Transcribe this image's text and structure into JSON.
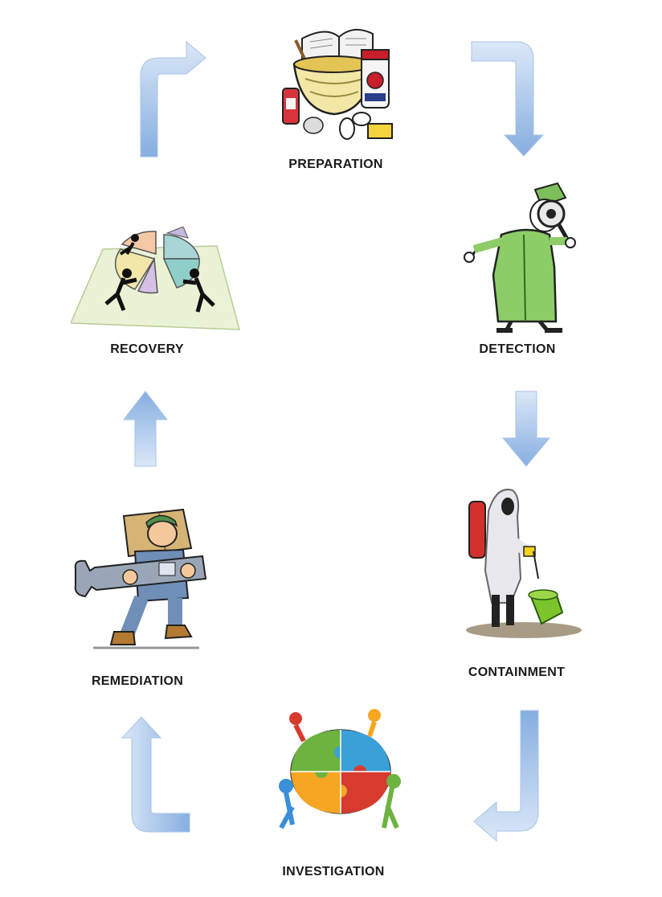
{
  "diagram": {
    "stages": [
      {
        "id": "preparation",
        "label": "PREPARATION",
        "icon": "cookbook-bowl-icon"
      },
      {
        "id": "detection",
        "label": "DETECTION",
        "icon": "detective-magnifier-icon"
      },
      {
        "id": "containment",
        "label": "CONTAINMENT",
        "icon": "hazmat-worker-icon"
      },
      {
        "id": "investigation",
        "label": "INVESTIGATION",
        "icon": "puzzle-team-icon"
      },
      {
        "id": "remediation",
        "label": "REMEDIATION",
        "icon": "worker-wrench-icon"
      },
      {
        "id": "recovery",
        "label": "RECOVERY",
        "icon": "pie-chart-people-icon"
      }
    ],
    "colors": {
      "arrow_light": "#cfe0f6",
      "arrow_dark": "#7ea4dc",
      "arrow_stroke": "#9bb8e3"
    }
  }
}
